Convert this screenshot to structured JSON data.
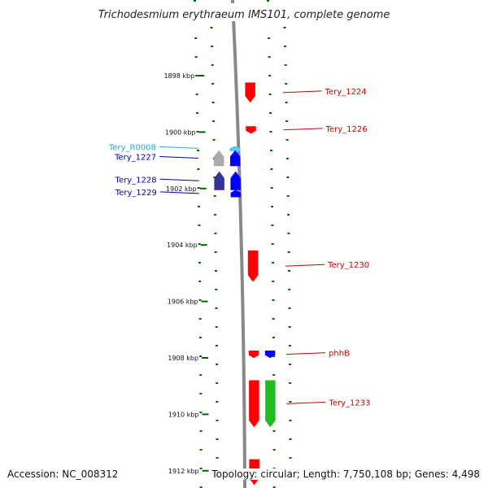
{
  "title": "Trichodesmium erythraeum IMS101, complete genome",
  "accession": "Accession: NC_008312",
  "stats": "Topology: circular; Length: 7,750,108 bp; Genes: 4,498",
  "ruler_unit": "kbp",
  "ticks": [
    {
      "kbp": 1898,
      "label": "1898 kbp"
    },
    {
      "kbp": 1900,
      "label": "1900 kbp"
    },
    {
      "kbp": 1902,
      "label": "1902 kbp"
    },
    {
      "kbp": 1904,
      "label": "1904 kbp"
    },
    {
      "kbp": 1906,
      "label": "1906 kbp"
    },
    {
      "kbp": 1908,
      "label": "1908 kbp"
    },
    {
      "kbp": 1910,
      "label": "1910 kbp"
    },
    {
      "kbp": 1912,
      "label": "1912 kbp"
    }
  ],
  "colors": {
    "forward_cds": "#ff0000",
    "reverse_cds": "#0000ff",
    "reverse_cds_dark": "#333399",
    "rrna": "#22bb22",
    "trna": "#55ccee",
    "pseudo": "#aaaaaa",
    "ruler": "#006600",
    "backbone": "#888888"
  },
  "features": [
    {
      "name": "Tery_1224",
      "strand": "forward",
      "start_kbp": 1898.25,
      "end_kbp": 1898.95,
      "color": "#ff0000",
      "label_side": "right"
    },
    {
      "name": "Tery_1226",
      "strand": "forward",
      "start_kbp": 1899.8,
      "end_kbp": 1900.05,
      "color": "#ff0000",
      "label_side": "right"
    },
    {
      "name": "Tery_R0008",
      "strand": "reverse",
      "start_kbp": 1900.5,
      "end_kbp": 1900.65,
      "color": "#55ccee",
      "label_side": "left"
    },
    {
      "name": "Tery_1227",
      "strand": "reverse",
      "start_kbp": 1900.65,
      "end_kbp": 1901.2,
      "color": "#0000ff",
      "label_side": "left"
    },
    {
      "name": "",
      "strand": "reverse",
      "start_kbp": 1900.65,
      "end_kbp": 1901.2,
      "color": "#aaaaaa",
      "label_side": "none"
    },
    {
      "name": "Tery_1228",
      "strand": "reverse",
      "start_kbp": 1901.4,
      "end_kbp": 1902.05,
      "color": "#0000ff",
      "label_side": "left"
    },
    {
      "name": "",
      "strand": "reverse",
      "start_kbp": 1901.4,
      "end_kbp": 1902.05,
      "color": "#333399",
      "label_side": "none"
    },
    {
      "name": "Tery_1229",
      "strand": "reverse",
      "start_kbp": 1902.05,
      "end_kbp": 1902.3,
      "color": "#0000ff",
      "label_side": "left"
    },
    {
      "name": "Tery_1230",
      "strand": "forward",
      "start_kbp": 1904.2,
      "end_kbp": 1905.3,
      "color": "#ff0000",
      "label_side": "right"
    },
    {
      "name": "phhB",
      "strand": "forward",
      "start_kbp": 1907.75,
      "end_kbp": 1908.0,
      "color": "#ff0000",
      "label_side": "right"
    },
    {
      "name": "",
      "strand": "forward",
      "start_kbp": 1907.75,
      "end_kbp": 1908.0,
      "color": "#0000ff",
      "label_side": "none"
    },
    {
      "name": "Tery_1233",
      "strand": "forward",
      "start_kbp": 1908.8,
      "end_kbp": 1910.45,
      "color": "#ff0000",
      "label_side": "right"
    },
    {
      "name": "",
      "strand": "forward",
      "start_kbp": 1908.8,
      "end_kbp": 1910.45,
      "color": "#22bb22",
      "label_side": "none"
    },
    {
      "name": "",
      "strand": "forward",
      "start_kbp": 1911.6,
      "end_kbp": 1912.5,
      "color": "#ff0000",
      "label_side": "none"
    }
  ]
}
